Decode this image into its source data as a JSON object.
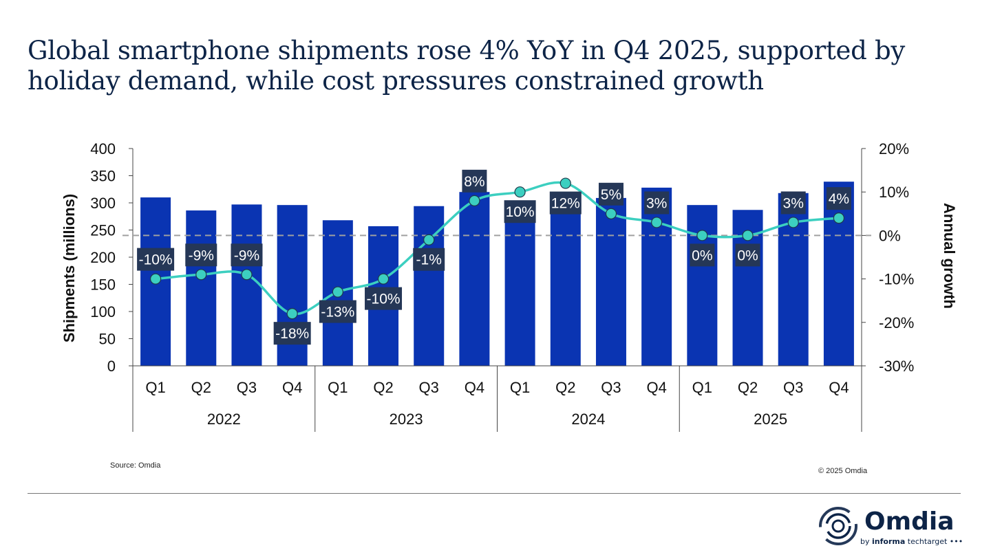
{
  "title": "Global smartphone shipments rose 4% YoY in Q4 2025, supported by holiday demand, while cost pressures constrained growth",
  "source": "Source: Omdia",
  "copyright": "© 2025 Omdia",
  "logo": {
    "name": "Omdia",
    "tagline": "by informa techtarget"
  },
  "colors": {
    "bar": "#0a34b2",
    "line": "#3ccfc0",
    "label_bg": "#253757",
    "title": "#0d2447",
    "zero_line": "#a0a0a0"
  },
  "chart_data": {
    "type": "bar+line",
    "categories": [
      "Q1",
      "Q2",
      "Q3",
      "Q4",
      "Q1",
      "Q2",
      "Q3",
      "Q4",
      "Q1",
      "Q2",
      "Q3",
      "Q4",
      "Q1",
      "Q2",
      "Q3",
      "Q4"
    ],
    "groups": [
      {
        "label": "2022",
        "count": 4
      },
      {
        "label": "2023",
        "count": 4
      },
      {
        "label": "2024",
        "count": 4
      },
      {
        "label": "2025",
        "count": 4
      }
    ],
    "series": [
      {
        "type": "bar",
        "axis": "left",
        "values": [
          310,
          286,
          297,
          296,
          268,
          257,
          294,
          320,
          296,
          288,
          309,
          328,
          296,
          287,
          318,
          339
        ]
      },
      {
        "type": "line",
        "axis": "right",
        "values": [
          -10,
          -9,
          -9,
          -18,
          -13,
          -10,
          -1,
          8,
          10,
          12,
          5,
          3,
          0,
          0,
          3,
          4
        ],
        "labels": [
          "-10%",
          "-9%",
          "-9%",
          "-18%",
          "-13%",
          "-10%",
          "-1%",
          "8%",
          "10%",
          "12%",
          "5%",
          "3%",
          "0%",
          "0%",
          "3%",
          "4%"
        ]
      }
    ],
    "ylabel": "Shipments (millions)",
    "y2label": "Annual growth",
    "ylim": [
      0,
      400
    ],
    "yticks": [
      "0",
      "50",
      "100",
      "150",
      "200",
      "250",
      "300",
      "350",
      "400"
    ],
    "y2lim": [
      -30,
      20
    ],
    "y2ticks": [
      "-30%",
      "-20%",
      "-10%",
      "0%",
      "10%",
      "20%"
    ],
    "grid": false,
    "reference_line": {
      "axis": "right",
      "value": 0,
      "style": "dashed"
    }
  }
}
